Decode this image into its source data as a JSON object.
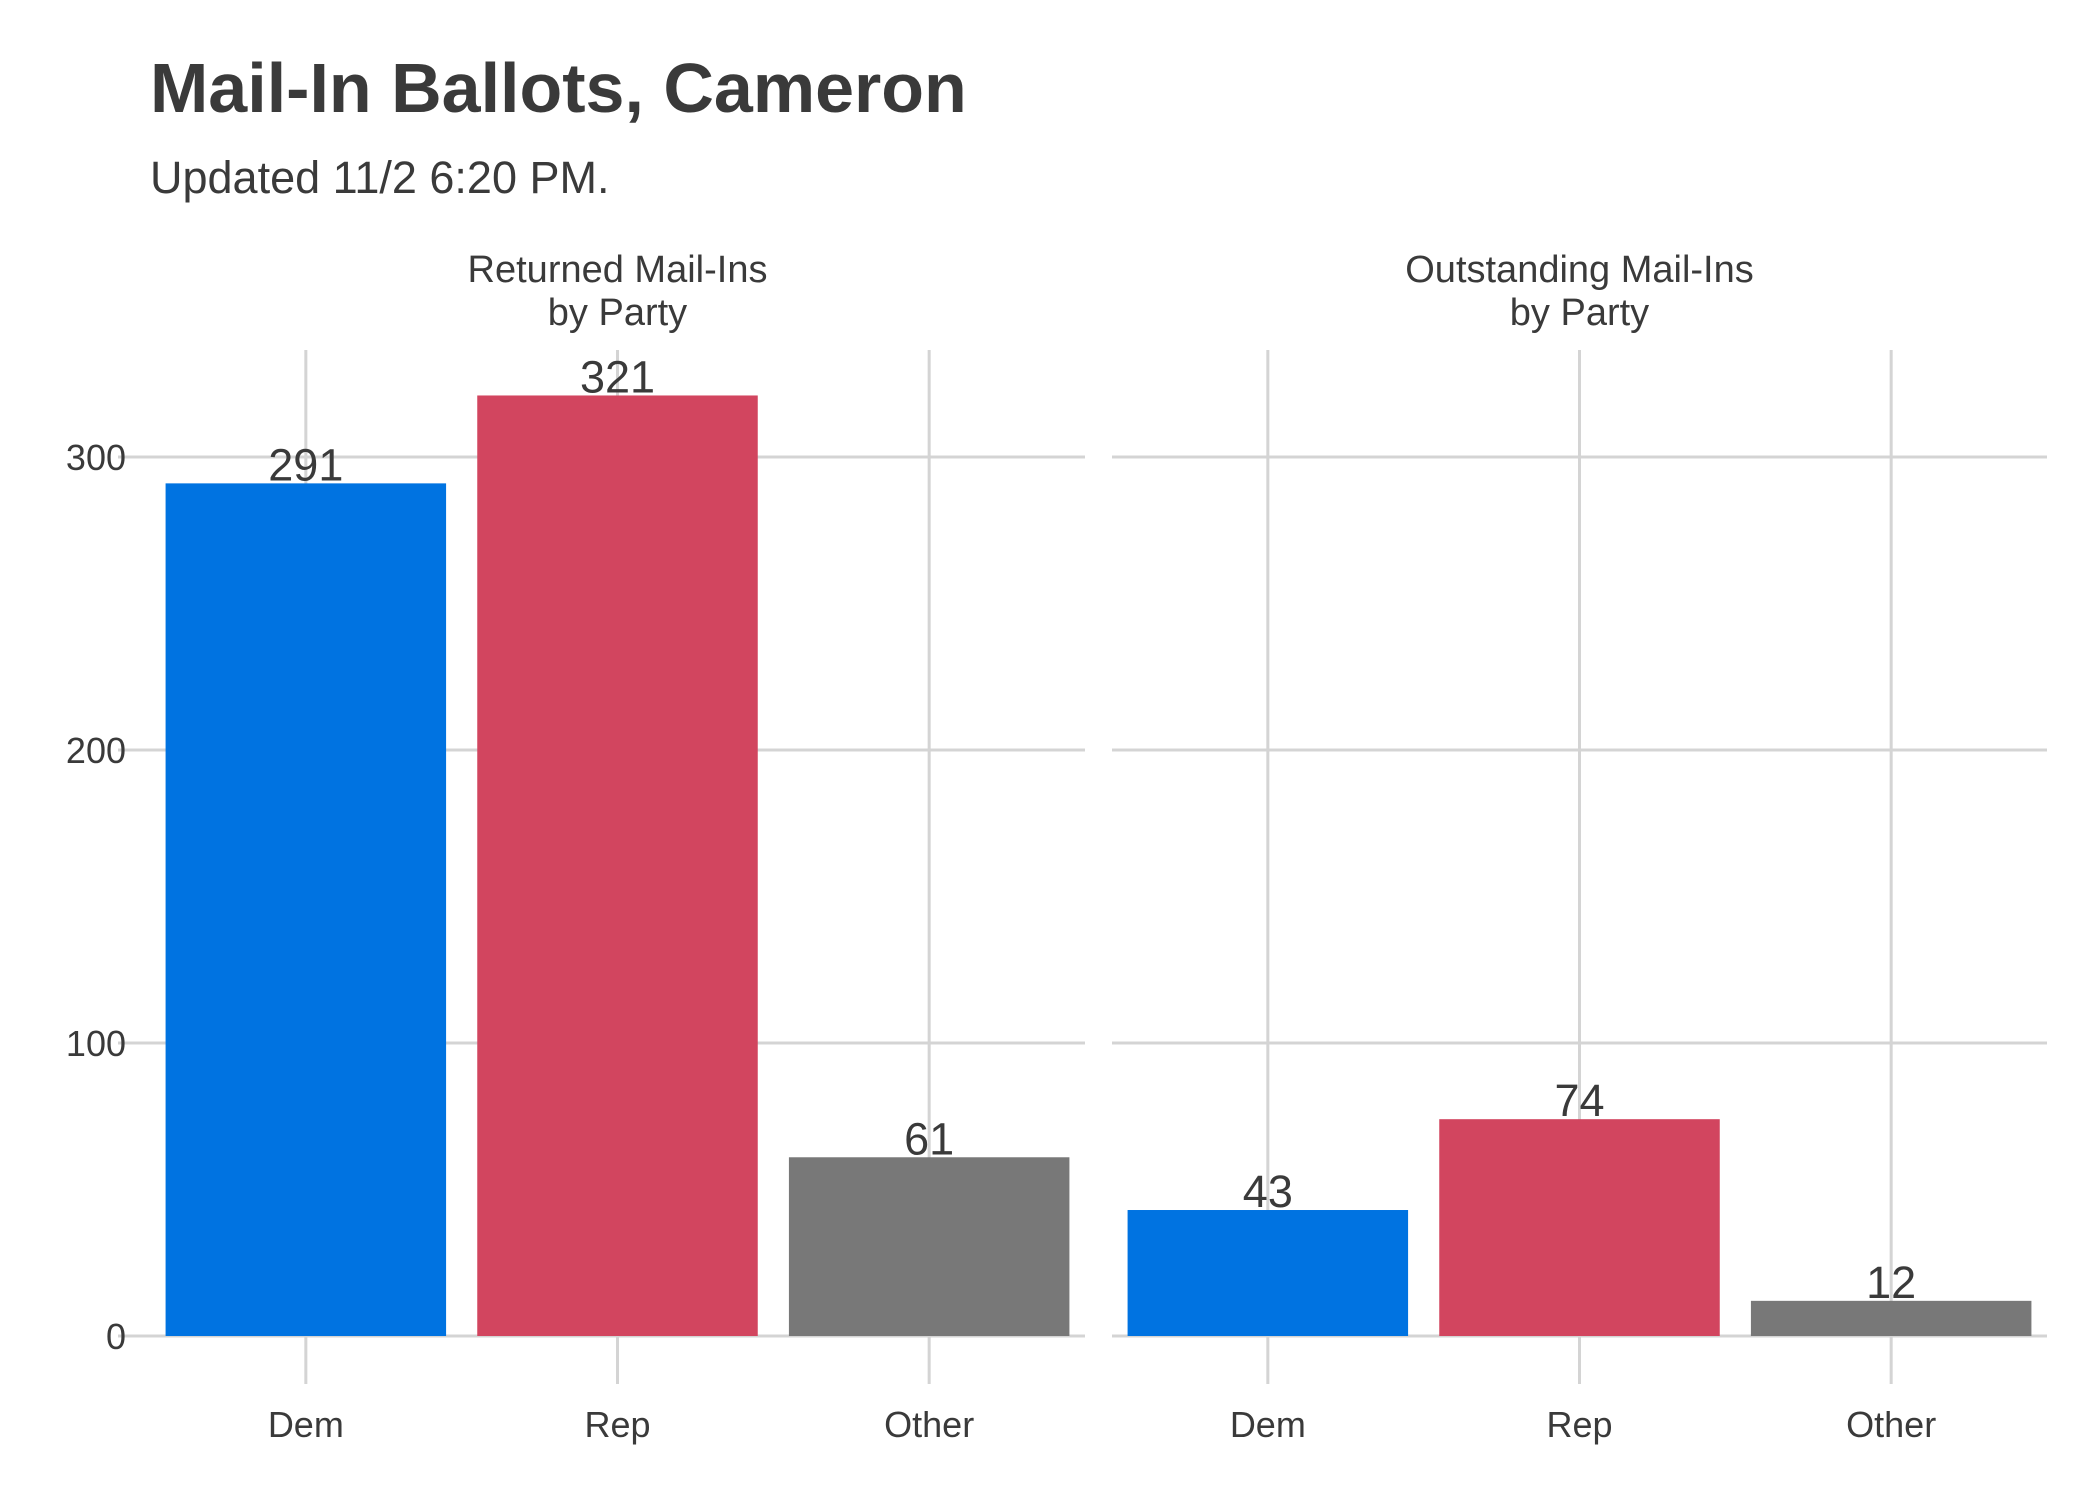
{
  "chart_data": {
    "type": "bar",
    "title": "Mail-In Ballots, Cameron",
    "subtitle": "Updated 11/2 6:20 PM.",
    "categories": [
      "Dem",
      "Rep",
      "Other"
    ],
    "colors": {
      "Dem": "#0073E1",
      "Rep": "#D2455F",
      "Other": "#787878"
    },
    "y_ticks": [
      0,
      100,
      200,
      300
    ],
    "ylim": [
      0,
      337
    ],
    "grid": true,
    "panels": [
      {
        "title_lines": [
          "Returned Mail-Ins",
          "by Party"
        ],
        "values": [
          291,
          321,
          61
        ]
      },
      {
        "title_lines": [
          "Outstanding Mail-Ins",
          "by Party"
        ],
        "values": [
          43,
          74,
          12
        ]
      }
    ]
  }
}
